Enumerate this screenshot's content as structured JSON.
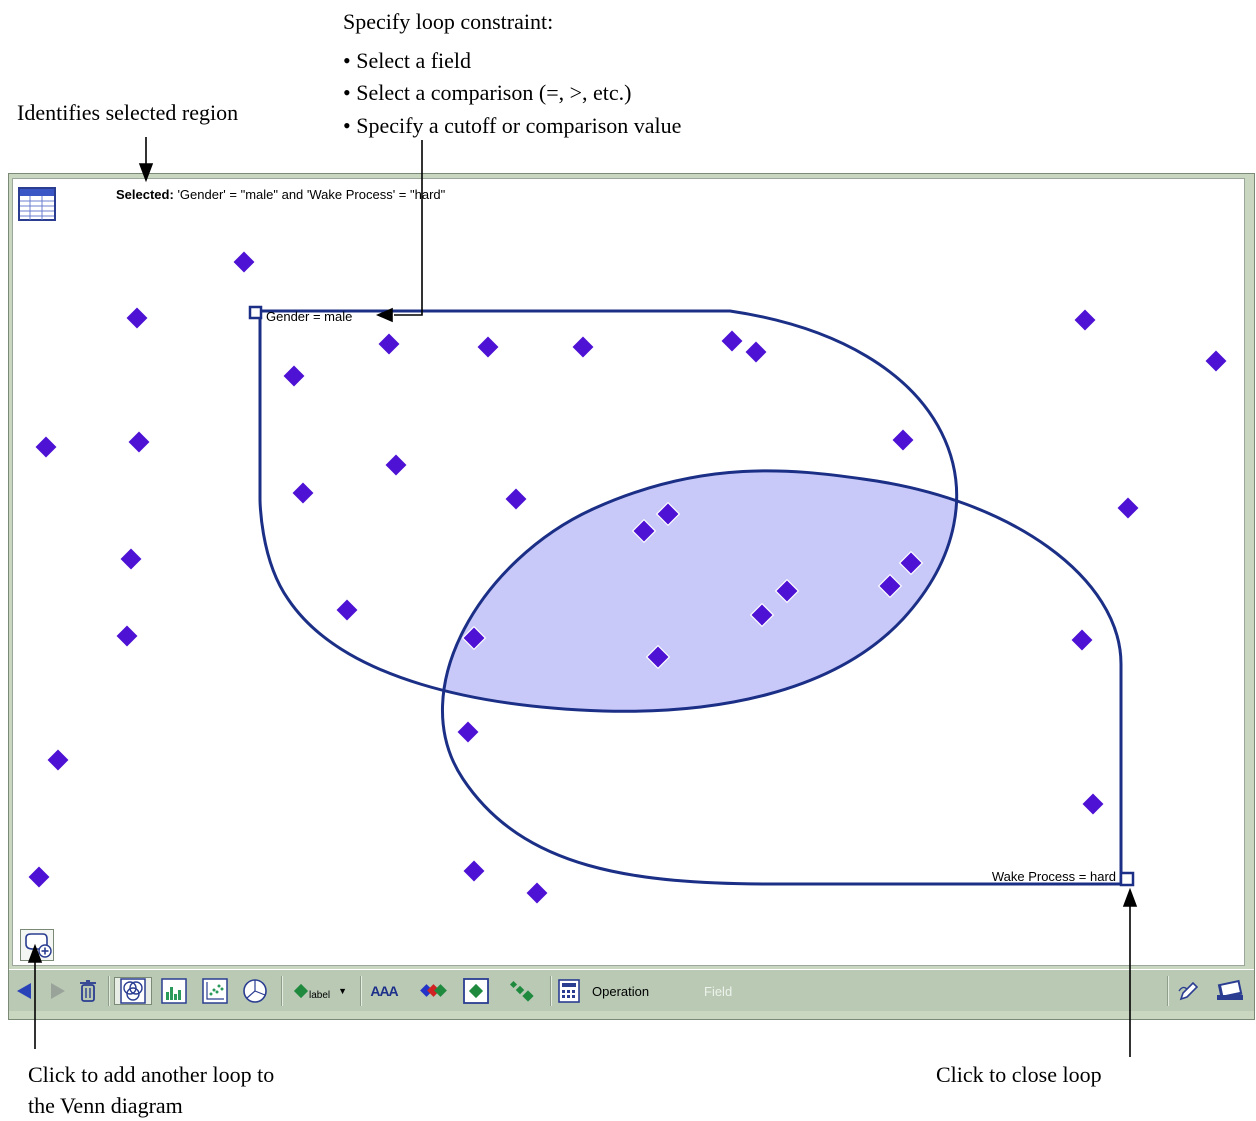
{
  "annotations": {
    "loop_constraint_heading": "Specify loop constraint:",
    "loop_constraint_steps": [
      "Select a field",
      "Select a comparison (=, >, etc.)",
      "Specify a cutoff or comparison value"
    ],
    "selected_region": "Identifies selected region",
    "add_loop": [
      "Click to add another loop to",
      "the Venn diagram"
    ],
    "close_loop": "Click to close loop"
  },
  "selection": {
    "label": "Selected:",
    "expression": "'Gender' = \"male\" and 'Wake Process' = \"hard\""
  },
  "loops": {
    "gender": "Gender = male",
    "wake": "Wake Process = hard"
  },
  "toolbar": {
    "operation_label": "Operation",
    "field_label": "Field",
    "label_button": "label",
    "text_style_button": "AAA"
  },
  "colors": {
    "loop_stroke": "#1b2f86",
    "selection_fill": "#c8c9f8",
    "data_point": "#4d12d4",
    "toolbar_bg": "#b9c9b4"
  },
  "icons": {
    "table": "table-icon",
    "add_loop": "add-loop-icon",
    "back": "back-arrow-icon",
    "forward": "forward-arrow-icon",
    "trash": "trash-icon",
    "venn": "venn-view-icon",
    "histogram": "histogram-view-icon",
    "scatter": "scatter-view-icon",
    "pie": "pie-view-icon",
    "calculator": "calculator-icon"
  }
}
